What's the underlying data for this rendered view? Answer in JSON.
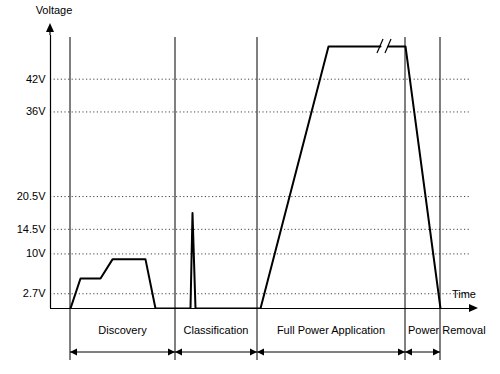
{
  "chart_data": {
    "type": "line",
    "xlabel": "Time",
    "ylabel": "Voltage",
    "x": [
      70,
      80,
      100,
      112,
      145,
      155,
      187,
      190,
      192,
      195,
      260,
      328,
      380,
      384,
      388,
      405,
      440
    ],
    "values": [
      0,
      5.5,
      5.5,
      9,
      9,
      0,
      0,
      0,
      17.5,
      0,
      0,
      48,
      48,
      null,
      48,
      48,
      0
    ],
    "color": "#000000",
    "xlim": [
      50,
      470
    ],
    "ylim": [
      0,
      50
    ],
    "yticks": [
      {
        "value": 2.7,
        "label": "2.7V"
      },
      {
        "value": 10,
        "label": "10V"
      },
      {
        "value": 14.5,
        "label": "14.5V"
      },
      {
        "value": 20.5,
        "label": "20.5V"
      },
      {
        "value": 36,
        "label": "36V"
      },
      {
        "value": 42,
        "label": "42V"
      }
    ],
    "grid": true,
    "tick_labels": "y",
    "phases": [
      {
        "label": "Discovery",
        "start": 70,
        "end": 175
      },
      {
        "label": "Classification",
        "start": 175,
        "end": 257
      },
      {
        "label": "Full Power Application",
        "start": 257,
        "end": 405
      },
      {
        "label": "Power Removal",
        "start": 405,
        "end": 440
      }
    ]
  }
}
